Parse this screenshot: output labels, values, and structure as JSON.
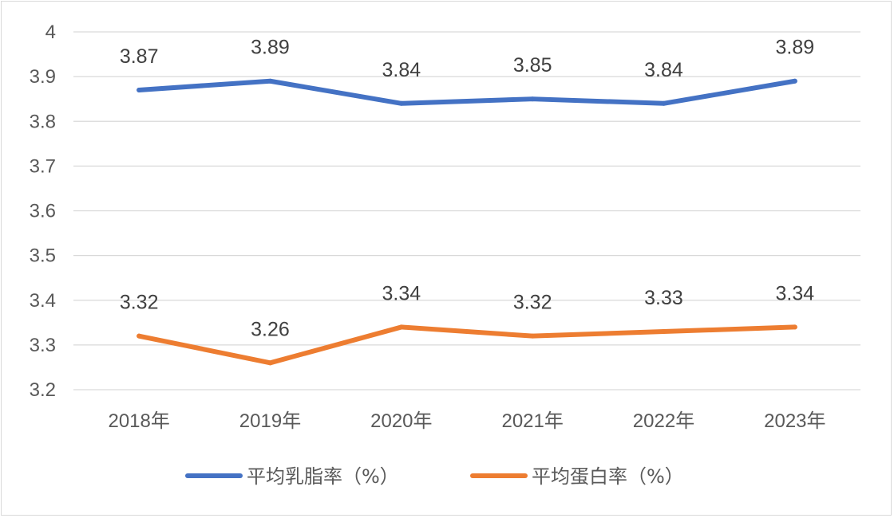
{
  "chart_data": {
    "type": "line",
    "title": "",
    "xlabel": "",
    "ylabel": "",
    "categories": [
      "2018年",
      "2019年",
      "2020年",
      "2021年",
      "2022年",
      "2023年"
    ],
    "ylim": [
      3.2,
      4
    ],
    "yticks": [
      "3.2",
      "3.3",
      "3.4",
      "3.5",
      "3.6",
      "3.7",
      "3.8",
      "3.9",
      "4"
    ],
    "grid": true,
    "legend_position": "bottom",
    "series": [
      {
        "name": "平均乳脂率（%）",
        "color": "#4472C4",
        "values": [
          3.87,
          3.89,
          3.84,
          3.85,
          3.84,
          3.89
        ],
        "labels": [
          "3.87",
          "3.89",
          "3.84",
          "3.85",
          "3.84",
          "3.89"
        ]
      },
      {
        "name": "平均蛋白率（%）",
        "color": "#ED7D31",
        "values": [
          3.32,
          3.26,
          3.34,
          3.32,
          3.33,
          3.34
        ],
        "labels": [
          "3.32",
          "3.26",
          "3.34",
          "3.32",
          "3.33",
          "3.34"
        ]
      }
    ]
  }
}
